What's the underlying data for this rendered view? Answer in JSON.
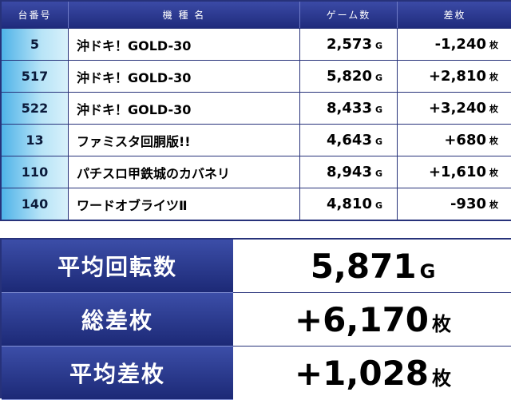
{
  "table": {
    "headers": {
      "no": "台番号",
      "name": "機 種 名",
      "games": "ゲーム数",
      "diff": "差枚"
    },
    "rows": [
      {
        "no": "5",
        "name": "沖ドキ！GOLD-30",
        "games": "2,573",
        "diff": "-1,240"
      },
      {
        "no": "517",
        "name": "沖ドキ！GOLD-30",
        "games": "5,820",
        "diff": "+2,810"
      },
      {
        "no": "522",
        "name": "沖ドキ！GOLD-30",
        "games": "8,433",
        "diff": "+3,240"
      },
      {
        "no": "13",
        "name": "ファミスタ回胴版!!",
        "games": "4,643",
        "diff": "+680"
      },
      {
        "no": "110",
        "name": "パチスロ甲鉄城のカバネリ",
        "games": "8,943",
        "diff": "+1,610"
      },
      {
        "no": "140",
        "name": "ワードオブライツⅡ",
        "games": "4,810",
        "diff": "-930"
      }
    ],
    "games_unit": "G",
    "diff_unit": "枚"
  },
  "summary": {
    "avg_spins_label": "平均回転数",
    "avg_spins_value": "5,871",
    "avg_spins_unit": "G",
    "total_diff_label": "総差枚",
    "total_diff_value": "+6,170",
    "total_diff_unit": "枚",
    "avg_diff_label": "平均差枚",
    "avg_diff_value": "+1,028",
    "avg_diff_unit": "枚"
  },
  "colors": {
    "header_blue": "#27327a",
    "number_cell_light_blue": "#9fdaf4"
  }
}
